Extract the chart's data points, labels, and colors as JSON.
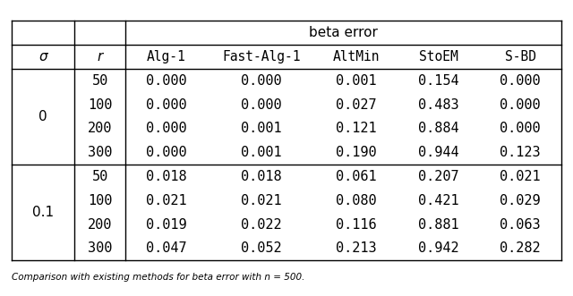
{
  "title": "beta error",
  "col_headers": [
    "σ",
    "r",
    "Alg-1",
    "Fast-Alg-1",
    "AltMin",
    "StoEM",
    "S-BD"
  ],
  "sigma_values": [
    "0",
    "0.1"
  ],
  "r_values": [
    50,
    100,
    200,
    300
  ],
  "data": [
    [
      "0.000",
      "0.000",
      "0.001",
      "0.154",
      "0.000"
    ],
    [
      "0.000",
      "0.000",
      "0.027",
      "0.483",
      "0.000"
    ],
    [
      "0.000",
      "0.001",
      "0.121",
      "0.884",
      "0.000"
    ],
    [
      "0.000",
      "0.001",
      "0.190",
      "0.944",
      "0.123"
    ],
    [
      "0.018",
      "0.018",
      "0.061",
      "0.207",
      "0.021"
    ],
    [
      "0.021",
      "0.021",
      "0.080",
      "0.421",
      "0.029"
    ],
    [
      "0.019",
      "0.022",
      "0.116",
      "0.881",
      "0.063"
    ],
    [
      "0.047",
      "0.052",
      "0.213",
      "0.942",
      "0.282"
    ]
  ],
  "background_color": "#ffffff",
  "line_color": "#000000",
  "font_size": 11,
  "caption": "Comparison with existing methods for beta error with n = 500."
}
